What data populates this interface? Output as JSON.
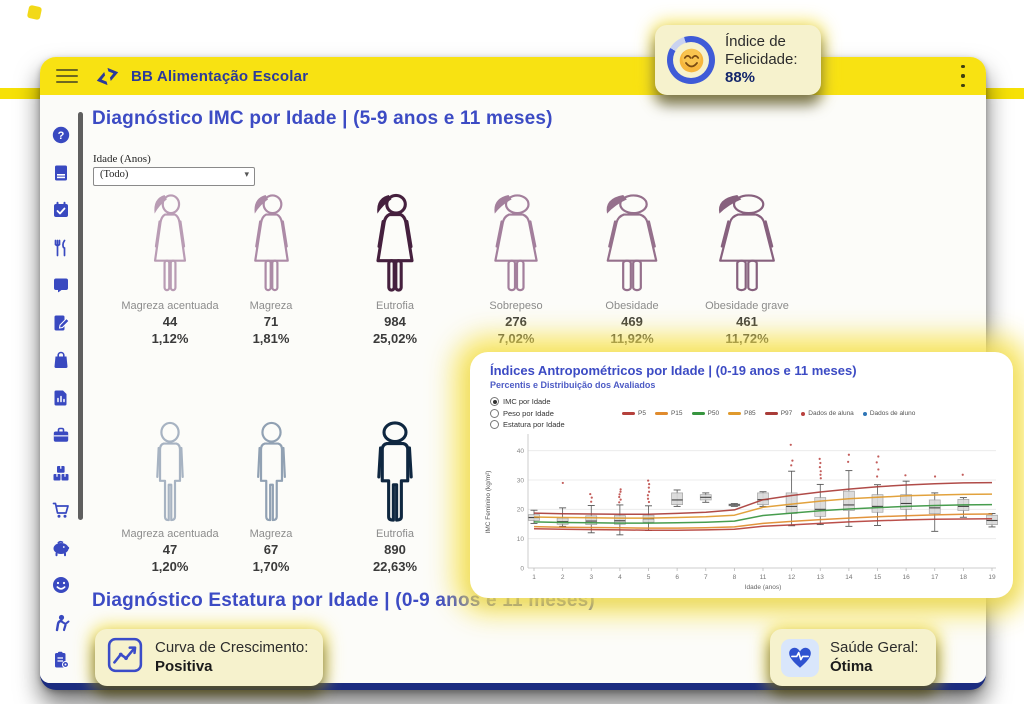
{
  "page": {
    "background": "#ffffff",
    "accent_yellow": "#f6e106",
    "accent_blue": "#2b3a9b"
  },
  "header": {
    "title": "BB Alimentação Escolar"
  },
  "sidebar": {
    "icons": [
      "question-circle-icon",
      "book-icon",
      "calendar-check-icon",
      "utensils-icon",
      "document-roll-icon",
      "file-pen-icon",
      "shopping-bag-icon",
      "file-chart-icon",
      "briefcase-icon",
      "boxes-icon",
      "cart-icon",
      "piggy-bank-icon",
      "smiley-icon",
      "person-greeting-icon",
      "clipboard-icon"
    ]
  },
  "happiness_card": {
    "label": "Índice de Felicidade:",
    "value": "88%",
    "percent": 88,
    "emoji": "smiling-face",
    "ring_color": "#3f5bd7",
    "ring_rest_color": "#c9d2f0"
  },
  "main": {
    "section_imc": {
      "title": "Diagnóstico IMC por Idade | (5-9 anos e 11 meses)"
    },
    "age_filter": {
      "label": "Idade (Anos)",
      "value": "(Todo)"
    },
    "female_row": {
      "gender": "female",
      "figures": [
        {
          "label": "Magreza acentuada",
          "count": "44",
          "percent": "1,12%",
          "color": "#b99cb4",
          "width": 1.0,
          "bold": false
        },
        {
          "label": "Magreza",
          "count": "71",
          "percent": "1,81%",
          "color": "#ac8aa6",
          "width": 1.08,
          "bold": false
        },
        {
          "label": "Eutrofia",
          "count": "984",
          "percent": "25,02%",
          "color": "#45203e",
          "width": 1.14,
          "bold": true
        },
        {
          "label": "Sobrepeso",
          "count": "276",
          "percent": "7,02%",
          "color": "#a37f9c",
          "width": 1.38,
          "bold": false
        },
        {
          "label": "Obesidade",
          "count": "469",
          "percent": "11,92%",
          "color": "#95708c",
          "width": 1.62,
          "bold": false
        },
        {
          "label": "Obesidade grave",
          "count": "461",
          "percent": "11,72%",
          "color": "#87617e",
          "width": 1.8,
          "bold": false
        }
      ]
    },
    "male_row": {
      "gender": "male",
      "figures": [
        {
          "label": "Magreza acentuada",
          "count": "47",
          "percent": "1,20%",
          "color": "#a7b3c2",
          "width": 1.0,
          "bold": false
        },
        {
          "label": "Magreza",
          "count": "67",
          "percent": "1,70%",
          "color": "#91a1b3",
          "width": 1.06,
          "bold": false
        },
        {
          "label": "Eutrofia",
          "count": "890",
          "percent": "22,63%",
          "color": "#0f2740",
          "width": 1.28,
          "bold": true
        }
      ]
    },
    "section_estatura": {
      "title": "Diagnóstico Estatura por Idade | (0-9 anos e 11 meses)"
    }
  },
  "overlay": {
    "title": "Índices Antropométricos por Idade | (0-19 anos e 11 meses)",
    "subtitle": "Percentis e Distribuição dos Avaliados",
    "radios": {
      "options": [
        "IMC por Idade",
        "Peso por Idade",
        "Estatura por Idade"
      ],
      "selected": 0
    }
  },
  "chart_data": {
    "type": "line+boxplot",
    "title": "Índices Antropométricos por Idade | (0-19 anos e 11 meses)",
    "xlabel": "Idade (anos)",
    "ylabel": "IMC Feminino (kg/m²)",
    "ylim": [
      0,
      45
    ],
    "yticks": [
      0,
      10,
      20,
      30,
      40
    ],
    "x_labels": [
      "1",
      "2",
      "3",
      "4",
      "5",
      "6",
      "7",
      "8",
      "11",
      "12",
      "13",
      "14",
      "15",
      "16",
      "17",
      "18",
      "19"
    ],
    "series": [
      {
        "name": "P5",
        "color": "#b5413c",
        "values": [
          13.4,
          13.2,
          13.1,
          13.0,
          12.9,
          12.9,
          13.0,
          13.2,
          14.2,
          14.7,
          15.2,
          15.7,
          16.1,
          16.4,
          16.6,
          16.7,
          16.8
        ]
      },
      {
        "name": "P15",
        "color": "#e08b2d",
        "values": [
          14.1,
          13.9,
          13.8,
          13.7,
          13.6,
          13.6,
          13.7,
          14.0,
          15.2,
          15.9,
          16.5,
          17.0,
          17.5,
          17.8,
          18.1,
          18.3,
          18.4
        ]
      },
      {
        "name": "P50",
        "color": "#37953f",
        "values": [
          15.7,
          15.5,
          15.4,
          15.3,
          15.3,
          15.4,
          15.6,
          16.0,
          17.9,
          18.7,
          19.5,
          20.1,
          20.6,
          21.0,
          21.3,
          21.5,
          21.6
        ]
      },
      {
        "name": "P85",
        "color": "#e09a2d",
        "values": [
          17.4,
          17.2,
          17.1,
          17.0,
          17.0,
          17.2,
          17.5,
          18.0,
          20.7,
          21.8,
          22.8,
          23.6,
          24.1,
          24.6,
          24.9,
          25.1,
          25.2
        ]
      },
      {
        "name": "P97",
        "color": "#a93c38",
        "values": [
          18.7,
          18.5,
          18.4,
          18.3,
          18.3,
          18.6,
          19.0,
          19.8,
          23.3,
          24.7,
          25.9,
          26.9,
          27.7,
          28.3,
          28.7,
          29.0,
          29.1
        ]
      }
    ],
    "points_legend": [
      {
        "name": "Dados de aluna",
        "color": "#b9413e"
      },
      {
        "name": "Dados de aluno",
        "color": "#2e75b6"
      }
    ],
    "boxplots": [
      {
        "lo": 15.2,
        "q1": 16.2,
        "med": 17.2,
        "q3": 18.2,
        "hi": 19.7
      },
      {
        "lo": 14.2,
        "q1": 14.9,
        "med": 15.8,
        "q3": 17.0,
        "hi": 20.5
      },
      {
        "lo": 12.0,
        "q1": 14.8,
        "med": 16.0,
        "q3": 17.8,
        "hi": 21.3
      },
      {
        "lo": 11.3,
        "q1": 14.9,
        "med": 16.1,
        "q3": 17.9,
        "hi": 21.5
      },
      {
        "lo": 12.8,
        "q1": 15.6,
        "med": 16.8,
        "q3": 18.0,
        "hi": 21.2
      },
      {
        "lo": 21.0,
        "q1": 21.6,
        "med": 23.2,
        "q3": 25.6,
        "hi": 26.6
      },
      {
        "lo": 22.4,
        "q1": 23.2,
        "med": 24.1,
        "q3": 25.0,
        "hi": 25.6
      },
      {
        "lo": 21.0,
        "q1": 21.2,
        "med": 21.5,
        "q3": 21.8,
        "hi": 22.0
      },
      {
        "lo": 21.0,
        "q1": 21.6,
        "med": 23.3,
        "q3": 25.6,
        "hi": 26.0
      },
      {
        "lo": 14.4,
        "q1": 18.6,
        "med": 21.0,
        "q3": 25.6,
        "hi": 33.0
      },
      {
        "lo": 14.8,
        "q1": 17.6,
        "med": 20.0,
        "q3": 24.0,
        "hi": 28.5
      },
      {
        "lo": 14.2,
        "q1": 19.6,
        "med": 21.5,
        "q3": 26.2,
        "hi": 33.2
      },
      {
        "lo": 14.5,
        "q1": 19.0,
        "med": 21.0,
        "q3": 25.0,
        "hi": 28.4
      },
      {
        "lo": 16.4,
        "q1": 20.0,
        "med": 22.0,
        "q3": 25.0,
        "hi": 29.6
      },
      {
        "lo": 12.5,
        "q1": 18.5,
        "med": 20.5,
        "q3": 23.2,
        "hi": 25.6
      },
      {
        "lo": 17.3,
        "q1": 19.6,
        "med": 21.0,
        "q3": 23.4,
        "hi": 24.0
      },
      {
        "lo": 14.0,
        "q1": 14.8,
        "med": 16.2,
        "q3": 18.0,
        "hi": 18.6
      }
    ],
    "outliers": [
      [
        1,
        29.0
      ],
      [
        2,
        22.6
      ],
      [
        2,
        24.0
      ],
      [
        2,
        25.2
      ],
      [
        3,
        22.4
      ],
      [
        3,
        23.3
      ],
      [
        3,
        24.2
      ],
      [
        3,
        25.1
      ],
      [
        3,
        26.0
      ],
      [
        3,
        26.8
      ],
      [
        4,
        22.5
      ],
      [
        4,
        23.6
      ],
      [
        4,
        24.8
      ],
      [
        4,
        26.0
      ],
      [
        4,
        27.4
      ],
      [
        4,
        28.6
      ],
      [
        4,
        29.8
      ],
      [
        9,
        35.0
      ],
      [
        9,
        36.6
      ],
      [
        9,
        42.0
      ],
      [
        10,
        30.6
      ],
      [
        10,
        31.8
      ],
      [
        10,
        33.0
      ],
      [
        10,
        34.4
      ],
      [
        10,
        35.8
      ],
      [
        10,
        37.2
      ],
      [
        11,
        36.2
      ],
      [
        11,
        38.6
      ],
      [
        12,
        31.2
      ],
      [
        12,
        33.6
      ],
      [
        12,
        36.0
      ],
      [
        12,
        38.0
      ],
      [
        13,
        31.6
      ],
      [
        14,
        31.2
      ],
      [
        15,
        31.8
      ]
    ],
    "legend_position": "top",
    "grid": true
  },
  "growth_card": {
    "label": "Curva de Crescimento:",
    "value": "Positiva"
  },
  "health_card": {
    "label": "Saúde Geral:",
    "value": "Ótima"
  }
}
